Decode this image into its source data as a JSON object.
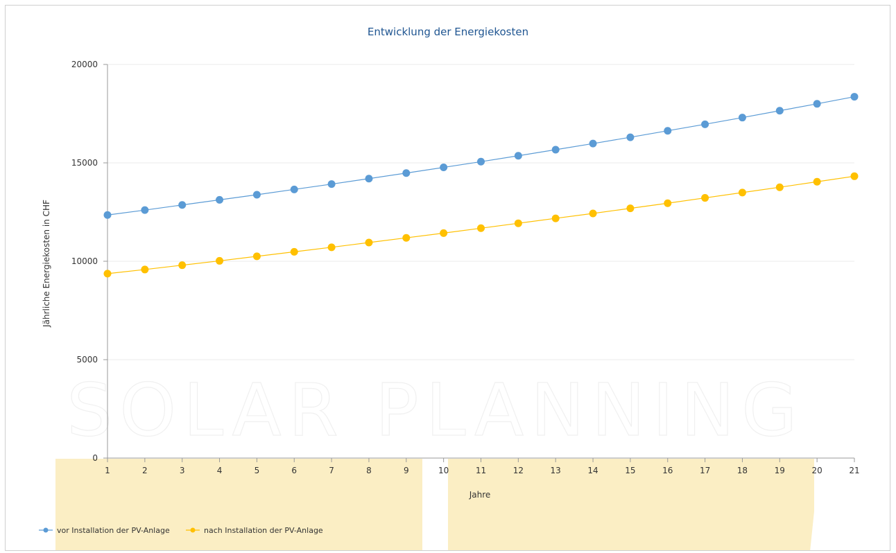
{
  "chart_data": {
    "type": "line",
    "title": "Entwicklung der Energiekosten",
    "xlabel": "Jahre",
    "ylabel": "Jährliche Energiekosten in CHF",
    "categories": [
      "1",
      "2",
      "3",
      "4",
      "5",
      "6",
      "7",
      "8",
      "9",
      "10",
      "11",
      "12",
      "13",
      "14",
      "15",
      "16",
      "17",
      "18",
      "19",
      "20",
      "21"
    ],
    "ylim": [
      0,
      20000
    ],
    "yticks": [
      "0",
      "5000",
      "10000",
      "15000",
      "20000"
    ],
    "grid": true,
    "legend_position": "bottom-left",
    "series": [
      {
        "name": "vor Installation der PV-Anlage",
        "color": "#5b9bd5",
        "values": [
          12350,
          12600,
          12860,
          13120,
          13380,
          13650,
          13920,
          14200,
          14480,
          14770,
          15060,
          15360,
          15670,
          15980,
          16300,
          16630,
          16960,
          17300,
          17650,
          18000,
          18360
        ]
      },
      {
        "name": "nach Installation der PV-Anlage",
        "color": "#ffc000",
        "values": [
          9370,
          9580,
          9800,
          10020,
          10250,
          10480,
          10710,
          10950,
          11190,
          11430,
          11680,
          11930,
          12180,
          12430,
          12690,
          12950,
          13220,
          13490,
          13760,
          14040,
          14320
        ]
      }
    ]
  },
  "watermark": "SOLAR PLANNING"
}
